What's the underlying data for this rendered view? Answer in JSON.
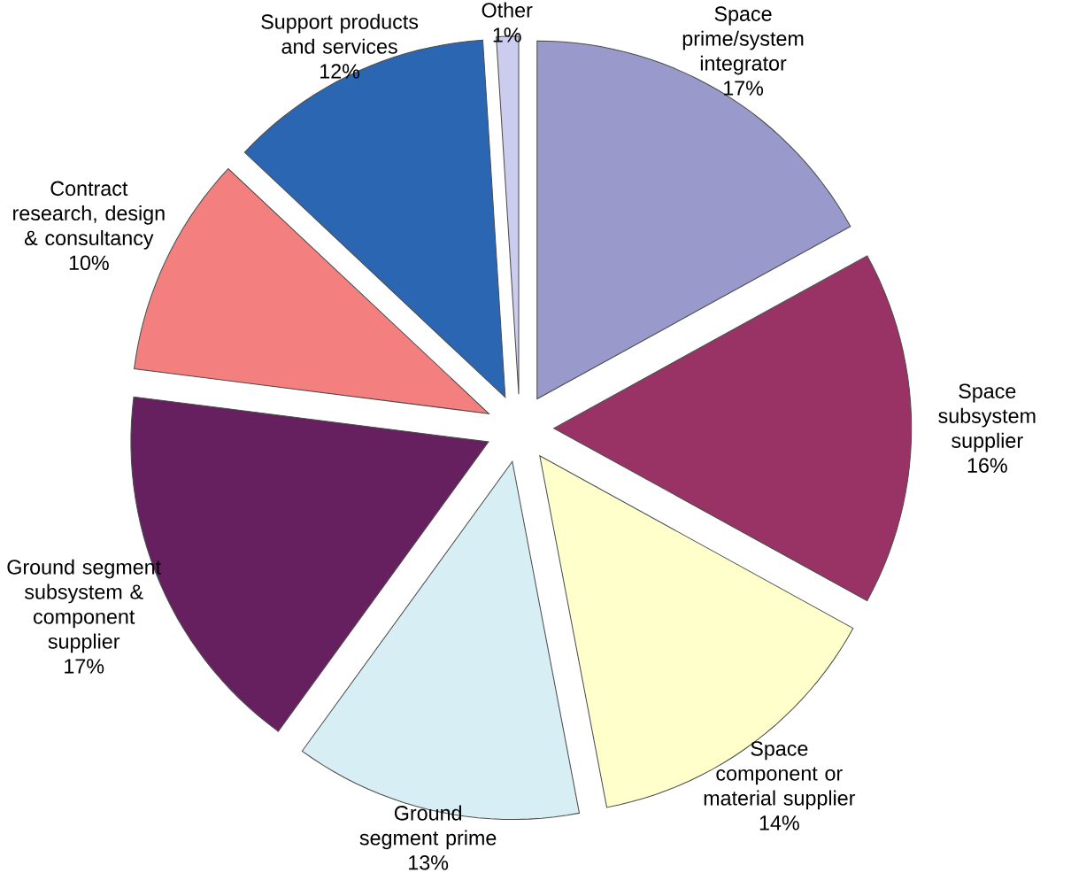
{
  "chart_data": {
    "type": "pie",
    "categories": [
      "Space prime/system integrator",
      "Space subsystem supplier",
      "Space component or material supplier",
      "Ground segment prime",
      "Ground segment subsystem & component supplier",
      "Contract research, design & consultancy",
      "Support products and services",
      "Other"
    ],
    "values": [
      17,
      16,
      14,
      13,
      17,
      10,
      12,
      1
    ],
    "value_labels": [
      "17%",
      "16%",
      "14%",
      "13%",
      "17%",
      "10%",
      "12%",
      "1%"
    ],
    "colors": [
      "#9999cc",
      "#993366",
      "#ffffcc",
      "#d6eef4",
      "#661f5f",
      "#f47f7f",
      "#2b66b3",
      "#ccccee"
    ]
  }
}
